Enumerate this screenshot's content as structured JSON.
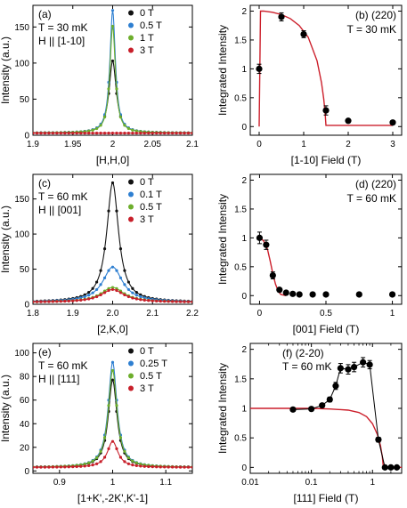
{
  "colors": {
    "black": "#111111",
    "blue": "#2e7fd1",
    "green": "#6dae2c",
    "red": "#c81f2a",
    "fit": "#cc1f2b"
  },
  "chart_data": [
    {
      "panel": "(a)",
      "type": "line",
      "ylabel": "Intensity (a.u.)",
      "xlabel": "[H,H,0]",
      "xlim": [
        1.9,
        2.1
      ],
      "ylim": [
        0,
        180
      ],
      "xticks": [
        1.9,
        1.95,
        2,
        2.05,
        2.1
      ],
      "xticklabels": [
        "1.9",
        "1.95",
        "2",
        "2.05",
        "2.1"
      ],
      "yticks": [
        0,
        50,
        100,
        150
      ],
      "yticklabels": [
        "0",
        "50",
        "100",
        "150"
      ],
      "annotations": [
        "(a)",
        "T = 30 mK",
        "H || [1-10]"
      ],
      "series": [
        {
          "name": "0 T",
          "color": "black",
          "center": 2.0,
          "amp": 100,
          "width": 0.0055,
          "bg": 3
        },
        {
          "name": "0.5 T",
          "color": "blue",
          "center": 2.0,
          "amp": 170,
          "width": 0.0042,
          "bg": 3
        },
        {
          "name": "1 T",
          "color": "green",
          "center": 2.0,
          "amp": 148,
          "width": 0.0042,
          "bg": 3
        },
        {
          "name": "3 T",
          "color": "red",
          "center": 2.0,
          "amp": 0,
          "width": 0.005,
          "bg": 3
        }
      ]
    },
    {
      "panel": "(b)",
      "type": "scatter",
      "ylabel": "Integrated Intensity",
      "xlabel": "[1-10] Field (T)",
      "xlim": [
        -0.2,
        3.2
      ],
      "ylim": [
        -0.15,
        2.1
      ],
      "xticks": [
        0,
        1,
        2,
        3
      ],
      "xticklabels": [
        "0",
        "1",
        "2",
        "3"
      ],
      "yticks": [
        0,
        0.5,
        1,
        1.5,
        2
      ],
      "yticklabels": [
        "0",
        "0.5",
        "1",
        "1.5",
        "2"
      ],
      "annotations": [
        "(b) (220)",
        "T = 30 mK"
      ],
      "x": [
        0,
        0.5,
        1.0,
        1.5,
        2.0,
        3.0
      ],
      "y": [
        1.0,
        1.9,
        1.6,
        0.28,
        0.1,
        0.07
      ],
      "err": [
        0.08,
        0.07,
        0.06,
        0.08,
        0.03,
        0.03
      ],
      "fit": {
        "x": [
          0,
          0.03,
          0.1,
          0.3,
          0.5,
          0.7,
          0.9,
          1.1,
          1.3,
          1.4,
          1.45,
          1.48,
          1.5,
          2.0,
          3.0
        ],
        "y": [
          0.0,
          2.0,
          2.0,
          1.98,
          1.94,
          1.87,
          1.75,
          1.55,
          1.14,
          0.76,
          0.48,
          0.25,
          0.02,
          0.02,
          0.02
        ]
      }
    },
    {
      "panel": "(c)",
      "type": "line",
      "ylabel": "Intensity (a.u.)",
      "xlabel": "[2,K,0]",
      "xlim": [
        1.8,
        2.2
      ],
      "ylim": [
        0,
        185
      ],
      "xticks": [
        1.8,
        1.9,
        2.0,
        2.1,
        2.2
      ],
      "xticklabels": [
        "1.8",
        "1.9",
        "2.0",
        "2.1",
        "2.2"
      ],
      "yticks": [
        0,
        50,
        100,
        150
      ],
      "yticklabels": [
        "0",
        "50",
        "100",
        "150"
      ],
      "annotations": [
        "(c)",
        "T = 60 mK",
        "H || [001]"
      ],
      "series": [
        {
          "name": "0 T",
          "color": "black",
          "center": 2.0,
          "amp": 170,
          "width": 0.018,
          "bg": 3
        },
        {
          "name": "0.1 T",
          "color": "blue",
          "center": 2.0,
          "amp": 50,
          "width": 0.03,
          "bg": 3
        },
        {
          "name": "0.5 T",
          "color": "green",
          "center": 2.0,
          "amp": 21,
          "width": 0.035,
          "bg": 3
        },
        {
          "name": "3 T",
          "color": "red",
          "center": 2.0,
          "amp": 18,
          "width": 0.035,
          "bg": 3
        }
      ]
    },
    {
      "panel": "(d)",
      "type": "scatter",
      "ylabel": "Integrated Intensity",
      "xlabel": "[001] Field (T)",
      "xlim": [
        -0.07,
        1.07
      ],
      "ylim": [
        -0.15,
        2.1
      ],
      "xticks": [
        0,
        0.5,
        1
      ],
      "xticklabels": [
        "0",
        "0.5",
        "1"
      ],
      "yticks": [
        0,
        0.5,
        1,
        1.5,
        2
      ],
      "yticklabels": [
        "0",
        "0.5",
        "1",
        "1.5",
        "2"
      ],
      "annotations": [
        "(d) (220)",
        "T = 60 mK"
      ],
      "x": [
        0,
        0.05,
        0.1,
        0.15,
        0.2,
        0.25,
        0.3,
        0.4,
        0.5,
        0.75,
        1.0
      ],
      "y": [
        1.0,
        0.88,
        0.35,
        0.1,
        0.05,
        0.03,
        0.02,
        0.02,
        0.02,
        0.02,
        0.02
      ],
      "err": [
        0.1,
        0.08,
        0.06,
        0.03,
        0.02,
        0.02,
        0.01,
        0.01,
        0.01,
        0.01,
        0.01
      ],
      "fit": {
        "x": [
          0,
          0.03,
          0.06,
          0.08,
          0.1,
          0.12,
          0.14,
          0.16,
          0.2
        ],
        "y": [
          1.0,
          0.95,
          0.8,
          0.6,
          0.38,
          0.2,
          0.08,
          0.02,
          0.0
        ]
      }
    },
    {
      "panel": "(e)",
      "type": "line",
      "ylabel": "Intensity (a.u.)",
      "xlabel": "[1+K',-2K',K'-1]",
      "xlim": [
        0.85,
        1.15
      ],
      "ylim": [
        -2,
        108
      ],
      "xticks": [
        0.9,
        1.0,
        1.1
      ],
      "xticklabels": [
        "0.9",
        "1",
        "1.1"
      ],
      "yticks": [
        0,
        20,
        40,
        60,
        80,
        100
      ],
      "yticklabels": [
        "0",
        "20",
        "40",
        "60",
        "80",
        "100"
      ],
      "annotations": [
        "(e)",
        "T = 60 mK",
        "H || [111]"
      ],
      "series": [
        {
          "name": "0 T",
          "color": "black",
          "center": 1.0,
          "amp": 74,
          "width": 0.01,
          "bg": 3
        },
        {
          "name": "0.25 T",
          "color": "blue",
          "center": 1.0,
          "amp": 89,
          "width": 0.01,
          "bg": 3
        },
        {
          "name": "0.5 T",
          "color": "green",
          "center": 1.0,
          "amp": 82,
          "width": 0.01,
          "bg": 3
        },
        {
          "name": "3 T",
          "color": "red",
          "center": 1.0,
          "amp": 22,
          "width": 0.012,
          "bg": 3
        }
      ]
    },
    {
      "panel": "(f)",
      "type": "scatter",
      "xscale": "log",
      "ylabel": "Integrated Intensity",
      "xlabel": "[111] Field (T)",
      "xlim": [
        0.01,
        3
      ],
      "ylim": [
        -0.1,
        2.1
      ],
      "xticks": [
        0.01,
        0.1,
        1
      ],
      "xticklabels": [
        "0.01",
        "0.1",
        "1"
      ],
      "yticks": [
        0,
        0.5,
        1,
        1.5,
        2
      ],
      "yticklabels": [
        "0",
        "0.5",
        "1",
        "1.5",
        "2"
      ],
      "annotations": [
        "(f) (2-20)",
        "T = 60 mK"
      ],
      "x": [
        0.05,
        0.1,
        0.15,
        0.2,
        0.25,
        0.3,
        0.4,
        0.5,
        0.7,
        0.9,
        1.25,
        1.6,
        2.0,
        2.5
      ],
      "y": [
        0.98,
        0.99,
        1.05,
        1.15,
        1.38,
        1.68,
        1.66,
        1.7,
        1.78,
        1.74,
        0.47,
        0.0,
        0.0,
        0.0
      ],
      "err": [
        0.02,
        0.02,
        0.03,
        0.04,
        0.06,
        0.08,
        0.08,
        0.08,
        0.08,
        0.07,
        0.04,
        0.02,
        0.02,
        0.02
      ],
      "fit": {
        "x": [
          0.01,
          0.05,
          0.1,
          0.2,
          0.4,
          0.6,
          0.8,
          1.0,
          1.2,
          1.35,
          1.45,
          1.5,
          2.0,
          3.0
        ],
        "y": [
          1.0,
          1.0,
          1.0,
          0.99,
          0.97,
          0.93,
          0.86,
          0.74,
          0.56,
          0.37,
          0.18,
          0.02,
          0.0,
          0.0
        ]
      }
    }
  ]
}
